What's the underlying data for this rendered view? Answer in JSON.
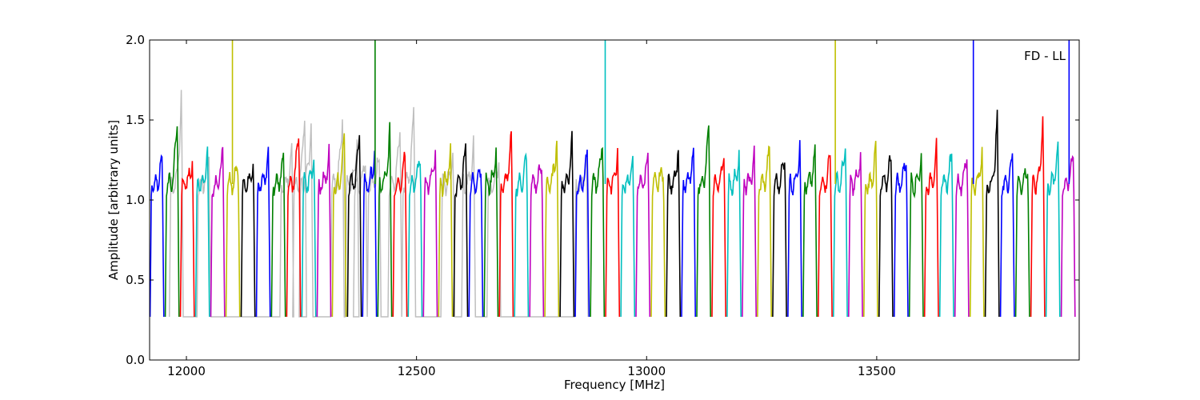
{
  "chart_data": {
    "type": "line",
    "title": "",
    "xlabel": "Frequency [MHz]",
    "ylabel": "Amplitude [arbitrary units]",
    "xlim": [
      11920,
      13940
    ],
    "ylim": [
      0.0,
      2.0
    ],
    "xticks": [
      12000,
      12500,
      13000,
      13500
    ],
    "yticks": [
      0.0,
      0.5,
      1.0,
      1.5,
      2.0
    ],
    "ytick_labels": [
      "0.0",
      "0.5",
      "1.0",
      "1.5",
      "2.0"
    ],
    "grid": false,
    "annotation": "FD - LL",
    "background_series": {
      "color": "#bfbfbf",
      "peaks": [
        [
          11990,
          1.68
        ],
        [
          12050,
          1.3
        ],
        [
          12230,
          1.31
        ],
        [
          12258,
          1.58
        ],
        [
          12272,
          1.52
        ],
        [
          12340,
          1.56
        ],
        [
          12372,
          1.4
        ],
        [
          12390,
          1.3
        ],
        [
          12420,
          1.3
        ],
        [
          12465,
          1.47
        ],
        [
          12495,
          1.6
        ],
        [
          12580,
          1.33
        ],
        [
          12625,
          1.35
        ],
        [
          12680,
          1.28
        ],
        [
          12870,
          1.25
        ]
      ]
    },
    "channel_width_mhz": 30,
    "baseline": 1.1,
    "dip_min": 0.27,
    "cycle_colors": [
      "#0000ff",
      "#008000",
      "#ff0000",
      "#00bfbf",
      "#bf00bf",
      "#bfbf00",
      "#000000"
    ],
    "channel_peaks": [
      1.25,
      1.53,
      1.28,
      1.3,
      1.3,
      1.24,
      1.26,
      1.3,
      1.3,
      1.47,
      1.3,
      1.3,
      1.43,
      1.45,
      1.3,
      1.43,
      1.3,
      1.3,
      1.31,
      1.3,
      1.36,
      1.24,
      1.32,
      1.42,
      1.28,
      1.24,
      1.42,
      1.39,
      1.3,
      1.41,
      1.31,
      1.26,
      1.29,
      1.22,
      1.35,
      1.32,
      1.47,
      1.3,
      1.3,
      1.28,
      1.34,
      1.31,
      1.36,
      1.3,
      1.3,
      1.36,
      1.28,
      1.33,
      1.29,
      1.3,
      1.28,
      1.33,
      1.3,
      1.3,
      1.3,
      1.52,
      1.3,
      1.22,
      1.53,
      1.35,
      1.3
    ],
    "spikes": [
      {
        "x": 12100,
        "color": "#bfbf00",
        "y": 2.0
      },
      {
        "x": 12410,
        "color": "#008000",
        "y": 2.0
      },
      {
        "x": 12910,
        "color": "#00bfbf",
        "y": 2.0
      },
      {
        "x": 13410,
        "color": "#bfbf00",
        "y": 2.0
      },
      {
        "x": 13710,
        "color": "#0000ff",
        "y": 2.0
      },
      {
        "x": 13918,
        "color": "#0000ff",
        "y": 2.0
      }
    ]
  }
}
